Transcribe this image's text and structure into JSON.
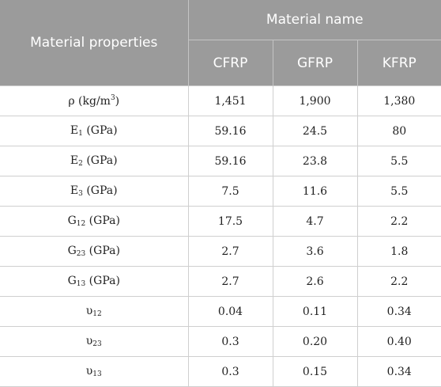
{
  "table": {
    "header": {
      "properties_label": "Material properties",
      "group_label": "Material name",
      "materials": [
        "CFRP",
        "GFRP",
        "KFRP"
      ]
    },
    "rows": [
      {
        "sym": "ρ",
        "sub": "",
        "unit": "(kg/m",
        "unit_sup": "3",
        "unit_end": ")",
        "values": [
          "1,451",
          "1,900",
          "1,380"
        ]
      },
      {
        "sym": "E",
        "sub": "1",
        "unit": "(GPa)",
        "unit_sup": "",
        "unit_end": "",
        "values": [
          "59.16",
          "24.5",
          "80"
        ]
      },
      {
        "sym": "E",
        "sub": "2",
        "unit": "(GPa)",
        "unit_sup": "",
        "unit_end": "",
        "values": [
          "59.16",
          "23.8",
          "5.5"
        ]
      },
      {
        "sym": "E",
        "sub": "3",
        "unit": "(GPa)",
        "unit_sup": "",
        "unit_end": "",
        "values": [
          "7.5",
          "11.6",
          "5.5"
        ]
      },
      {
        "sym": "G",
        "sub": "12",
        "unit": "(GPa)",
        "unit_sup": "",
        "unit_end": "",
        "values": [
          "17.5",
          "4.7",
          "2.2"
        ]
      },
      {
        "sym": "G",
        "sub": "23",
        "unit": "(GPa)",
        "unit_sup": "",
        "unit_end": "",
        "values": [
          "2.7",
          "3.6",
          "1.8"
        ]
      },
      {
        "sym": "G",
        "sub": "13",
        "unit": "(GPa)",
        "unit_sup": "",
        "unit_end": "",
        "values": [
          "2.7",
          "2.6",
          "2.2"
        ]
      },
      {
        "sym": "υ",
        "sub": "12",
        "unit": "",
        "unit_sup": "",
        "unit_end": "",
        "values": [
          "0.04",
          "0.11",
          "0.34"
        ]
      },
      {
        "sym": "υ",
        "sub": "23",
        "unit": "",
        "unit_sup": "",
        "unit_end": "",
        "values": [
          "0.3",
          "0.20",
          "0.40"
        ]
      },
      {
        "sym": "υ",
        "sub": "13",
        "unit": "",
        "unit_sup": "",
        "unit_end": "",
        "values": [
          "0.3",
          "0.15",
          "0.34"
        ]
      }
    ]
  }
}
